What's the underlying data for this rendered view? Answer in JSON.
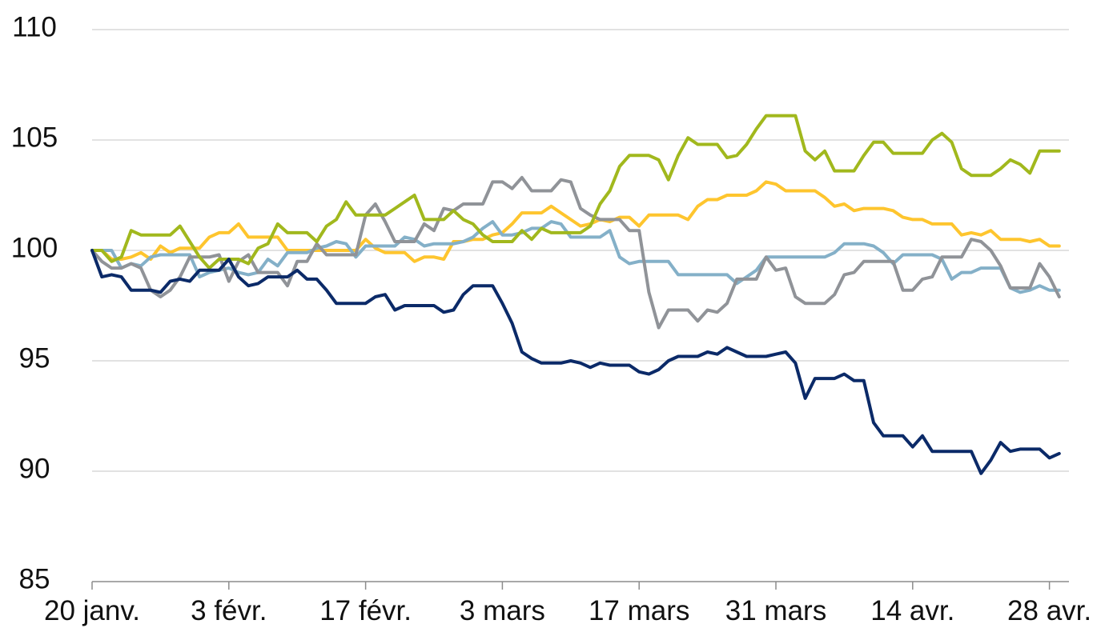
{
  "chart_data": {
    "type": "line",
    "ylim": [
      85,
      110
    ],
    "yticks": [
      85,
      90,
      95,
      100,
      105,
      110
    ],
    "xlim": [
      "20 janv.",
      "30 avr."
    ],
    "xticks": [
      "20 janv.",
      "3 févr.",
      "17 févr.",
      "3 mars",
      "17 mars",
      "31 mars",
      "14 avr.",
      "28 avr."
    ],
    "grid": true,
    "legend": "none",
    "x": [
      "20 janv.",
      "21 janv.",
      "22 janv.",
      "23 janv.",
      "24 janv.",
      "25 janv.",
      "26 janv.",
      "27 janv.",
      "28 janv.",
      "29 janv.",
      "30 janv.",
      "31 janv.",
      "1 févr.",
      "2 févr.",
      "3 févr.",
      "4 févr.",
      "5 févr.",
      "6 févr.",
      "7 févr.",
      "8 févr.",
      "9 févr.",
      "10 févr.",
      "11 févr.",
      "12 févr.",
      "13 févr.",
      "14 févr.",
      "15 févr.",
      "16 févr.",
      "17 févr.",
      "18 févr.",
      "19 févr.",
      "20 févr.",
      "21 févr.",
      "22 févr.",
      "23 févr.",
      "24 févr.",
      "25 févr.",
      "26 févr.",
      "27 févr.",
      "28 févr.",
      "1 mars",
      "2 mars",
      "3 mars",
      "4 mars",
      "5 mars",
      "6 mars",
      "7 mars",
      "8 mars",
      "9 mars",
      "10 mars",
      "11 mars",
      "12 mars",
      "13 mars",
      "14 mars",
      "15 mars",
      "16 mars",
      "17 mars",
      "18 mars",
      "19 mars",
      "20 mars",
      "21 mars",
      "22 mars",
      "23 mars",
      "24 mars",
      "25 mars",
      "26 mars",
      "27 mars",
      "28 mars",
      "29 mars",
      "30 mars",
      "31 mars",
      "1 avr.",
      "2 avr.",
      "3 avr.",
      "4 avr.",
      "5 avr.",
      "6 avr.",
      "7 avr.",
      "8 avr.",
      "9 avr.",
      "10 avr.",
      "11 avr.",
      "12 avr.",
      "13 avr.",
      "14 avr.",
      "15 avr.",
      "16 avr.",
      "17 avr.",
      "18 avr.",
      "19 avr.",
      "20 avr.",
      "21 avr.",
      "22 avr.",
      "23 avr.",
      "24 avr.",
      "25 avr.",
      "26 avr.",
      "27 avr.",
      "28 avr.",
      "29 avr."
    ],
    "series": [
      {
        "color": "#fec52e",
        "values": [
          100.0,
          100.0,
          99.6,
          99.6,
          99.7,
          99.9,
          99.6,
          100.2,
          99.9,
          100.1,
          100.1,
          100.1,
          100.6,
          100.8,
          100.8,
          101.2,
          100.6,
          100.6,
          100.6,
          100.6,
          100.0,
          100.0,
          100.0,
          100.0,
          100.0,
          100.0,
          100.0,
          100.0,
          100.5,
          100.1,
          99.9,
          99.9,
          99.9,
          99.5,
          99.7,
          99.7,
          99.6,
          100.4,
          100.4,
          100.5,
          100.5,
          100.7,
          100.8,
          101.2,
          101.7,
          101.7,
          101.7,
          102.0,
          101.7,
          101.4,
          101.1,
          101.2,
          101.4,
          101.3,
          101.5,
          101.5,
          101.1,
          101.6,
          101.6,
          101.6,
          101.6,
          101.4,
          102.0,
          102.3,
          102.3,
          102.5,
          102.5,
          102.5,
          102.7,
          103.1,
          103.0,
          102.7,
          102.7,
          102.7,
          102.7,
          102.4,
          102.0,
          102.1,
          101.8,
          101.9,
          101.9,
          101.9,
          101.8,
          101.5,
          101.4,
          101.4,
          101.2,
          101.2,
          101.2,
          100.7,
          100.8,
          100.7,
          100.9,
          100.5,
          100.5,
          100.5,
          100.4,
          100.5,
          100.2,
          100.2
        ]
      },
      {
        "color": "#84b0c8",
        "values": [
          100.0,
          100.0,
          100.0,
          99.2,
          99.4,
          99.3,
          99.7,
          99.8,
          99.8,
          99.8,
          99.8,
          98.8,
          99.0,
          99.1,
          99.2,
          99.0,
          98.9,
          99.0,
          99.6,
          99.3,
          99.9,
          99.9,
          99.9,
          100.1,
          100.2,
          100.4,
          100.3,
          99.7,
          100.2,
          100.2,
          100.2,
          100.2,
          100.6,
          100.5,
          100.2,
          100.3,
          100.3,
          100.3,
          100.4,
          100.6,
          101.0,
          101.3,
          100.7,
          100.7,
          100.8,
          101.0,
          101.0,
          101.3,
          101.2,
          100.6,
          100.6,
          100.6,
          100.6,
          100.9,
          99.7,
          99.4,
          99.5,
          99.5,
          99.5,
          99.5,
          98.9,
          98.9,
          98.9,
          98.9,
          98.9,
          98.9,
          98.5,
          98.8,
          99.1,
          99.7,
          99.7,
          99.7,
          99.7,
          99.7,
          99.7,
          99.7,
          99.9,
          100.3,
          100.3,
          100.3,
          100.2,
          99.9,
          99.4,
          99.8,
          99.8,
          99.8,
          99.8,
          99.6,
          98.7,
          99.0,
          99.0,
          99.2,
          99.2,
          99.2,
          98.3,
          98.1,
          98.2,
          98.4,
          98.2,
          98.2
        ]
      },
      {
        "color": "#909398",
        "values": [
          100.0,
          99.5,
          99.2,
          99.2,
          99.4,
          99.2,
          98.2,
          97.9,
          98.2,
          98.8,
          99.7,
          99.7,
          99.7,
          99.8,
          98.6,
          99.5,
          99.8,
          99.0,
          99.0,
          99.0,
          98.4,
          99.5,
          99.5,
          100.3,
          99.8,
          99.8,
          99.8,
          99.8,
          101.6,
          102.1,
          101.3,
          100.4,
          100.4,
          100.4,
          101.2,
          100.9,
          101.9,
          101.8,
          102.1,
          102.1,
          102.1,
          103.1,
          103.1,
          102.8,
          103.3,
          102.7,
          102.7,
          102.7,
          103.2,
          103.1,
          101.9,
          101.6,
          101.4,
          101.4,
          101.4,
          100.9,
          100.9,
          98.1,
          96.5,
          97.3,
          97.3,
          97.3,
          96.8,
          97.3,
          97.2,
          97.6,
          98.7,
          98.7,
          98.7,
          99.7,
          99.1,
          99.2,
          97.9,
          97.6,
          97.6,
          97.6,
          98.0,
          98.9,
          99.0,
          99.5,
          99.5,
          99.5,
          99.5,
          98.2,
          98.2,
          98.7,
          98.8,
          99.7,
          99.7,
          99.7,
          100.5,
          100.4,
          100.0,
          99.3,
          98.3,
          98.3,
          98.3,
          99.4,
          98.8,
          97.9
        ]
      },
      {
        "color": "#a1b81d",
        "values": [
          100.0,
          100.0,
          99.5,
          99.7,
          100.9,
          100.7,
          100.7,
          100.7,
          100.7,
          101.1,
          100.4,
          99.7,
          99.2,
          99.6,
          99.6,
          99.6,
          99.4,
          100.1,
          100.3,
          101.2,
          100.8,
          100.8,
          100.8,
          100.4,
          101.1,
          101.4,
          102.2,
          101.6,
          101.6,
          101.6,
          101.6,
          101.9,
          102.2,
          102.5,
          101.4,
          101.4,
          101.4,
          101.8,
          101.4,
          101.2,
          100.7,
          100.4,
          100.4,
          100.4,
          100.9,
          100.5,
          101.0,
          100.8,
          100.8,
          100.8,
          100.8,
          101.1,
          102.1,
          102.7,
          103.8,
          104.3,
          104.3,
          104.3,
          104.1,
          103.2,
          104.3,
          105.1,
          104.8,
          104.8,
          104.8,
          104.2,
          104.3,
          104.8,
          105.5,
          106.1,
          106.1,
          106.1,
          106.1,
          104.5,
          104.1,
          104.5,
          103.6,
          103.6,
          103.6,
          104.3,
          104.9,
          104.9,
          104.4,
          104.4,
          104.4,
          104.4,
          105.0,
          105.3,
          104.9,
          103.7,
          103.4,
          103.4,
          103.4,
          103.7,
          104.1,
          103.9,
          103.5,
          104.5,
          104.5,
          104.5
        ]
      },
      {
        "color": "#0b2a68",
        "values": [
          100.0,
          98.8,
          98.9,
          98.8,
          98.2,
          98.2,
          98.2,
          98.1,
          98.6,
          98.7,
          98.6,
          99.1,
          99.1,
          99.1,
          99.6,
          98.8,
          98.4,
          98.5,
          98.8,
          98.8,
          98.8,
          99.1,
          98.7,
          98.7,
          98.2,
          97.6,
          97.6,
          97.6,
          97.6,
          97.9,
          98.0,
          97.3,
          97.5,
          97.5,
          97.5,
          97.5,
          97.2,
          97.3,
          98.0,
          98.4,
          98.4,
          98.4,
          97.6,
          96.7,
          95.4,
          95.1,
          94.9,
          94.9,
          94.9,
          95.0,
          94.9,
          94.7,
          94.9,
          94.8,
          94.8,
          94.8,
          94.5,
          94.4,
          94.6,
          95.0,
          95.2,
          95.2,
          95.2,
          95.4,
          95.3,
          95.6,
          95.4,
          95.2,
          95.2,
          95.2,
          95.3,
          95.4,
          94.9,
          93.3,
          94.2,
          94.2,
          94.2,
          94.4,
          94.1,
          94.1,
          92.2,
          91.6,
          91.6,
          91.6,
          91.1,
          91.6,
          90.9,
          90.9,
          90.9,
          90.9,
          90.9,
          89.9,
          90.5,
          91.3,
          90.9,
          91.0,
          91.0,
          91.0,
          90.6,
          90.8
        ]
      }
    ]
  }
}
